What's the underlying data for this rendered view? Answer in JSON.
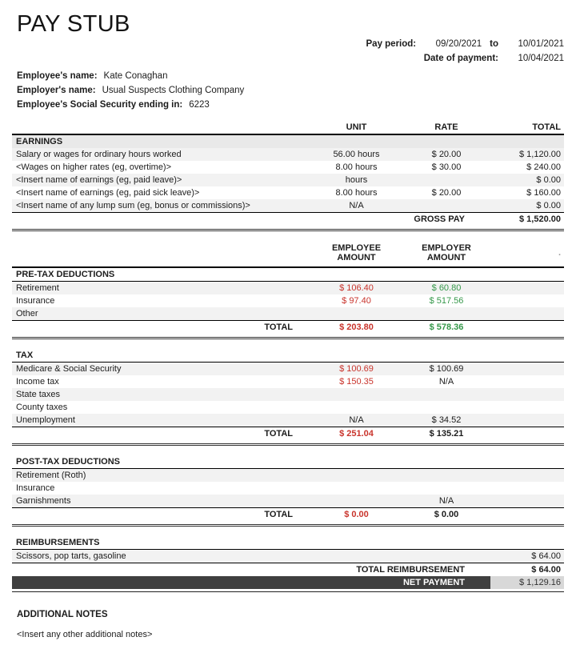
{
  "page": {
    "title": "PAY STUB"
  },
  "pay_info": {
    "pay_period_label": "Pay period:",
    "pay_period_start": "09/20/2021",
    "to": "to",
    "pay_period_end": "10/01/2021",
    "date_of_payment_label": "Date of payment:",
    "date_of_payment": "10/04/2021"
  },
  "employee_info": {
    "name_label": "Employee's name:",
    "name": "Kate Conaghan",
    "employer_label": "Employer's name:",
    "employer": "Usual Suspects Clothing Company",
    "ssn_label": "Employee's Social Security ending in:",
    "ssn_last4": "6223"
  },
  "earnings": {
    "col_headers": {
      "unit": "UNIT",
      "rate": "RATE",
      "total": "TOTAL"
    },
    "title": "EARNINGS",
    "rows": [
      {
        "label": "Salary or wages for ordinary hours worked",
        "unit": "56.00 hours",
        "rate": "$ 20.00",
        "total": "$ 1,120.00"
      },
      {
        "label": "<Wages on higher rates (eg, overtime)>",
        "unit": "8.00 hours",
        "rate": "$ 30.00",
        "total": "$ 240.00"
      },
      {
        "label": "<Insert name of earnings (eg, paid leave)>",
        "unit": "hours",
        "rate": "",
        "total": "$ 0.00"
      },
      {
        "label": "<Insert name of earnings (eg, paid sick leave)>",
        "unit": "8.00 hours",
        "rate": "$ 20.00",
        "total": "$ 160.00"
      },
      {
        "label": "<Insert name of any lump sum (eg, bonus or commissions)>",
        "unit": "N/A",
        "rate": "",
        "total": "$ 0.00"
      }
    ],
    "gross_pay": {
      "label": "GROSS PAY",
      "total": "$ 1,520.00"
    }
  },
  "amount_columns": {
    "employee": "EMPLOYEE\nAMOUNT",
    "employer": "EMPLOYER\nAMOUNT",
    "spacer": "."
  },
  "pretax": {
    "title": "PRE-TAX DEDUCTIONS",
    "rows": [
      {
        "label": "Retirement",
        "employee": "$ 106.40",
        "employer": "$ 60.80"
      },
      {
        "label": "Insurance",
        "employee": "$ 97.40",
        "employer": "$ 517.56"
      },
      {
        "label": "Other",
        "employee": "",
        "employer": ""
      }
    ],
    "total": {
      "label": "TOTAL",
      "employee": "$ 203.80",
      "employer": "$ 578.36"
    }
  },
  "tax": {
    "title": "TAX",
    "rows": [
      {
        "label": "Medicare & Social Security",
        "employee": "$ 100.69",
        "employer": "$ 100.69"
      },
      {
        "label": "Income tax",
        "employee": "$ 150.35",
        "employer": "N/A"
      },
      {
        "label": "State taxes",
        "employee": "",
        "employer": ""
      },
      {
        "label": "County taxes",
        "employee": "",
        "employer": ""
      },
      {
        "label": "Unemployment",
        "employee": "N/A",
        "employer": "$ 34.52"
      }
    ],
    "total": {
      "label": "TOTAL",
      "employee": "$ 251.04",
      "employer": "$ 135.21"
    }
  },
  "posttax": {
    "title": "POST-TAX DEDUCTIONS",
    "rows": [
      {
        "label": "Retirement (Roth)",
        "employee": "",
        "employer": ""
      },
      {
        "label": "Insurance",
        "employee": "",
        "employer": ""
      },
      {
        "label": "Garnishments",
        "employee": "",
        "employer": "N/A"
      }
    ],
    "total": {
      "label": "TOTAL",
      "employee": "$ 0.00",
      "employer": "$ 0.00"
    }
  },
  "reimbursements": {
    "title": "REIMBURSEMENTS",
    "rows": [
      {
        "label": "Scissors, pop tarts, gasoline",
        "total": "$ 64.00"
      }
    ],
    "total": {
      "label": "TOTAL REIMBURSEMENT",
      "total": "$ 64.00"
    },
    "net_payment": {
      "label": "NET PAYMENT",
      "total": "$ 1,129.16"
    }
  },
  "notes": {
    "title": "ADDITIONAL NOTES",
    "body": "<Insert any other additional notes>"
  },
  "colors": {
    "employee_amount": "#c9342c",
    "employer_amount": "#35984a",
    "net_payment_bar": "#3f3f3f",
    "net_payment_value_bg": "#d8d8d8",
    "row_stripe": "#f2f2f2"
  }
}
